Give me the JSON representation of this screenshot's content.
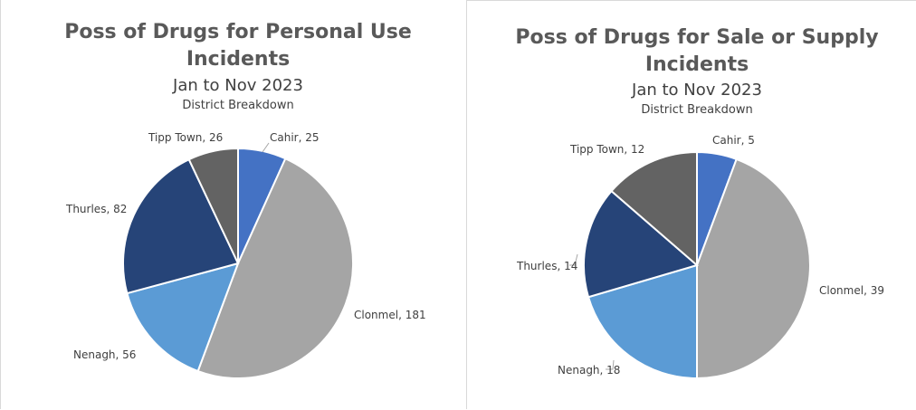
{
  "chart_data": [
    {
      "type": "pie",
      "title": "Poss of Drugs for Personal Use Incidents",
      "title_lines": [
        "Poss of Drugs for Personal Use",
        "Incidents"
      ],
      "subtitle": "Jan to Nov 2023",
      "subtitle2": "District Breakdown",
      "categories": [
        "Cahir",
        "Clonmel",
        "Nenagh",
        "Thurles",
        "Tipp Town"
      ],
      "values": [
        25,
        181,
        56,
        82,
        26
      ],
      "labels": [
        "Cahir, 25",
        "Clonmel, 181",
        "Nenagh, 56",
        "Thurles, 82",
        "Tipp Town, 26"
      ],
      "colors": [
        "#4472c4",
        "#a5a5a5",
        "#5b9bd5",
        "#264478",
        "#636363"
      ]
    },
    {
      "type": "pie",
      "title": "Poss of Drugs for Sale or Supply Incidents",
      "title_lines": [
        "Poss of Drugs for Sale or Supply",
        "Incidents"
      ],
      "subtitle": "Jan to Nov 2023",
      "subtitle2": "District Breakdown",
      "categories": [
        "Cahir",
        "Clonmel",
        "Nenagh",
        "Thurles",
        "Tipp Town"
      ],
      "values": [
        5,
        39,
        18,
        14,
        12
      ],
      "labels": [
        "Cahir, 5",
        "Clonmel, 39",
        "Nenagh, 18",
        "Thurles, 14",
        "Tipp Town, 12"
      ],
      "colors": [
        "#4472c4",
        "#a5a5a5",
        "#5b9bd5",
        "#264478",
        "#636363"
      ]
    }
  ]
}
